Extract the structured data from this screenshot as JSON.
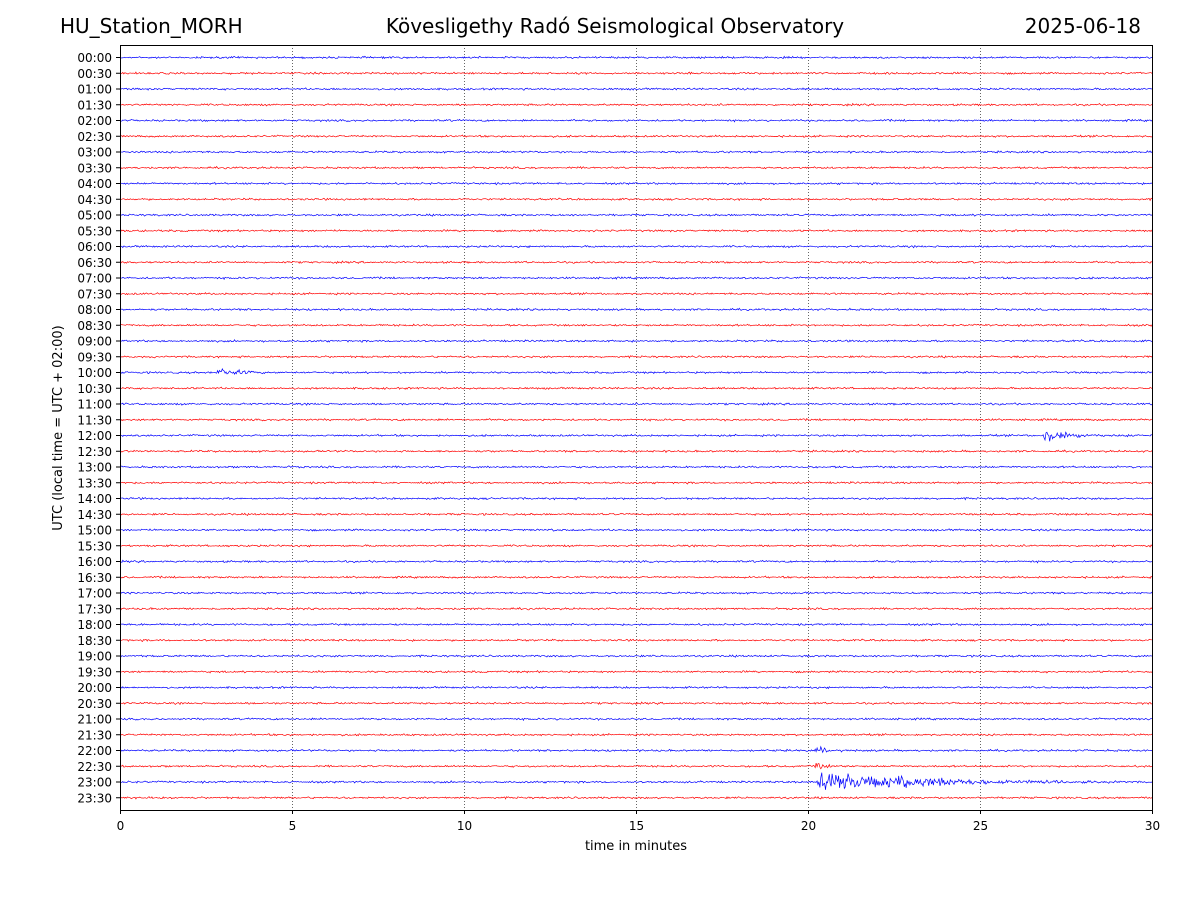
{
  "header": {
    "station": "HU_Station_MORH",
    "observatory": "Kövesligethy Radó Seismological Observatory",
    "date": "2025-06-18"
  },
  "chart_data": {
    "type": "line",
    "title": "Kövesligethy Radó Seismological Observatory",
    "xlabel": "time in minutes",
    "ylabel": "UTC (local time = UTC + 02:00)",
    "xlim": [
      0,
      30
    ],
    "x_ticks": [
      "0",
      "5",
      "10",
      "15",
      "20",
      "25",
      "30"
    ],
    "vertical_grid_minutes": [
      5,
      10,
      15,
      20,
      25
    ],
    "row_labels": [
      "00:00",
      "00:30",
      "01:00",
      "01:30",
      "02:00",
      "02:30",
      "03:00",
      "03:30",
      "04:00",
      "04:30",
      "05:00",
      "05:30",
      "06:00",
      "06:30",
      "07:00",
      "07:30",
      "08:00",
      "08:30",
      "09:00",
      "09:30",
      "10:00",
      "10:30",
      "11:00",
      "11:30",
      "12:00",
      "12:30",
      "13:00",
      "13:30",
      "14:00",
      "14:30",
      "15:00",
      "15:30",
      "16:00",
      "16:30",
      "17:00",
      "17:30",
      "18:00",
      "18:30",
      "19:00",
      "19:30",
      "20:00",
      "20:30",
      "21:00",
      "21:30",
      "22:00",
      "22:30",
      "23:00",
      "23:30"
    ],
    "trace_colors": [
      "#0000ff",
      "#ff0000"
    ],
    "events": [
      {
        "row": "09:30",
        "start_min": 0.8,
        "duration_min": 0.3,
        "amplitude": 0.25
      },
      {
        "row": "10:00",
        "start_min": 2.7,
        "duration_min": 2.5,
        "amplitude": 0.75
      },
      {
        "row": "12:00",
        "start_min": 26.8,
        "duration_min": 2.5,
        "amplitude": 1.2
      },
      {
        "row": "12:00",
        "start_min": 29.2,
        "duration_min": 0.4,
        "amplitude": 0.4
      },
      {
        "row": "15:00",
        "start_min": 12.5,
        "duration_min": 1.0,
        "amplitude": 0.2
      },
      {
        "row": "19:30",
        "start_min": 10.3,
        "duration_min": 0.1,
        "amplitude": 0.2
      },
      {
        "row": "22:00",
        "start_min": 20.2,
        "duration_min": 1.2,
        "amplitude": 0.9
      },
      {
        "row": "22:30",
        "start_min": 20.2,
        "duration_min": 1.2,
        "amplitude": 0.9
      },
      {
        "row": "23:00",
        "start_min": 20.2,
        "duration_min": 9.0,
        "amplitude": 2.2
      },
      {
        "row": "23:30",
        "start_min": 0.5,
        "duration_min": 1.2,
        "amplitude": 0.2
      }
    ]
  }
}
